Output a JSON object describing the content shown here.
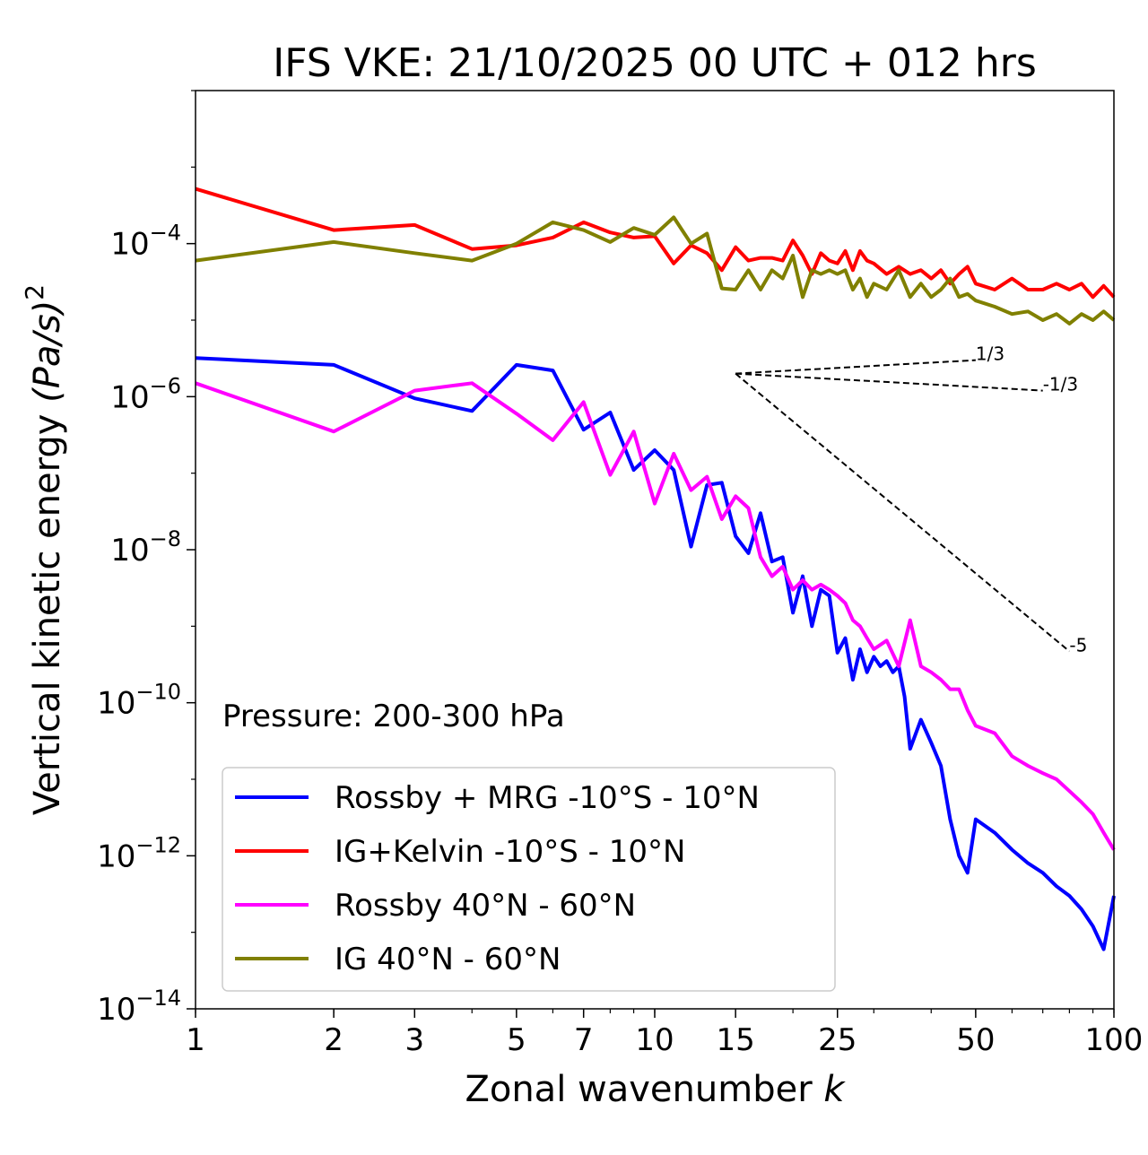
{
  "chart_data": {
    "type": "line",
    "title": "IFS VKE: 21/10/2025 00 UTC + 012 hrs",
    "xlabel_prefix": "Zonal wavenumber ",
    "xlabel_var": "k",
    "ylabel_prefix": "Vertical kinetic energy ",
    "ylabel_unit": "(Pa/s)",
    "ylabel_exp": "2",
    "xscale": "log",
    "yscale": "log",
    "xlim": [
      1,
      100
    ],
    "ylim": [
      1e-14,
      0.01
    ],
    "xticks": [
      1,
      2,
      3,
      5,
      7,
      10,
      15,
      25,
      50,
      100
    ],
    "xtick_labels": [
      "1",
      "2",
      "3",
      "5",
      "7",
      "10",
      "15",
      "25",
      "50",
      "100"
    ],
    "yticks": [
      {
        "value": 0.0001,
        "base": "10",
        "exp": "−4"
      },
      {
        "value": 1e-06,
        "base": "10",
        "exp": "−6"
      },
      {
        "value": 1e-08,
        "base": "10",
        "exp": "−8"
      },
      {
        "value": 1e-10,
        "base": "10",
        "exp": "−10"
      },
      {
        "value": 1e-12,
        "base": "10",
        "exp": "−12"
      },
      {
        "value": 1e-14,
        "base": "10",
        "exp": "−14"
      }
    ],
    "annotation": "Pressure: 200-300 hPa",
    "legend_location": "lower-left",
    "series": [
      {
        "name": "Rossby + MRG -10°S - 10°N",
        "color": "#0000ff",
        "x": [
          1,
          2,
          3,
          4,
          5,
          6,
          7,
          8,
          9,
          10,
          11,
          12,
          13,
          14,
          15,
          16,
          17,
          18,
          19,
          20,
          21,
          22,
          23,
          24,
          25,
          26,
          27,
          28,
          29,
          30,
          31,
          32,
          33,
          34,
          35,
          36,
          38,
          40,
          42,
          44,
          46,
          48,
          50,
          55,
          60,
          65,
          70,
          75,
          80,
          85,
          90,
          95,
          100
        ],
        "values": [
          3.2e-06,
          2.6e-06,
          9.5e-07,
          6.5e-07,
          2.6e-06,
          2.2e-06,
          3.7e-07,
          6.2e-07,
          1.1e-07,
          2e-07,
          1.1e-07,
          1.1e-08,
          7e-08,
          7.5e-08,
          1.5e-08,
          9e-09,
          3e-08,
          7e-09,
          8e-09,
          1.5e-09,
          4.5e-09,
          1e-09,
          3e-09,
          2.5e-09,
          4.5e-10,
          7e-10,
          2e-10,
          5e-10,
          2.5e-10,
          4e-10,
          3e-10,
          3.5e-10,
          2.5e-10,
          3e-10,
          1.2e-10,
          2.5e-11,
          6e-11,
          3e-11,
          1.5e-11,
          3e-12,
          1e-12,
          6e-13,
          3e-12,
          2e-12,
          1.2e-12,
          8e-13,
          6e-13,
          4e-13,
          3e-13,
          2e-13,
          1.2e-13,
          6e-14,
          3e-13
        ]
      },
      {
        "name": "IG+Kelvin -10°S - 10°N",
        "color": "#ff0000",
        "x": [
          1,
          2,
          3,
          4,
          5,
          6,
          7,
          8,
          9,
          10,
          11,
          12,
          13,
          14,
          15,
          16,
          17,
          18,
          19,
          20,
          21,
          22,
          23,
          24,
          25,
          26,
          27,
          28,
          29,
          30,
          32,
          34,
          36,
          38,
          40,
          42,
          44,
          46,
          48,
          50,
          55,
          60,
          65,
          70,
          75,
          80,
          85,
          90,
          95,
          100
        ],
        "values": [
          0.00052,
          0.00015,
          0.000175,
          8.5e-05,
          9.5e-05,
          0.00012,
          0.00019,
          0.00014,
          0.00012,
          0.000125,
          5.5e-05,
          9.5e-05,
          7.5e-05,
          4.5e-05,
          9e-05,
          6e-05,
          6.5e-05,
          6.5e-05,
          6e-05,
          0.00011,
          7e-05,
          4e-05,
          7.5e-05,
          6e-05,
          5.5e-05,
          8e-05,
          4.5e-05,
          8e-05,
          6e-05,
          5.5e-05,
          4e-05,
          5e-05,
          4e-05,
          4.5e-05,
          3.5e-05,
          4.5e-05,
          3e-05,
          4e-05,
          5e-05,
          3e-05,
          2.5e-05,
          3.5e-05,
          2.5e-05,
          2.5e-05,
          3e-05,
          2.5e-05,
          3e-05,
          2e-05,
          2.8e-05,
          2e-05
        ]
      },
      {
        "name": "Rossby 40°N - 60°N",
        "color": "#ff00ff",
        "x": [
          1,
          2,
          3,
          4,
          5,
          6,
          7,
          8,
          9,
          10,
          11,
          12,
          13,
          14,
          15,
          16,
          17,
          18,
          19,
          20,
          21,
          22,
          23,
          24,
          25,
          26,
          27,
          28,
          29,
          30,
          32,
          34,
          36,
          38,
          40,
          42,
          44,
          46,
          48,
          50,
          55,
          60,
          65,
          70,
          75,
          80,
          85,
          90,
          95,
          100
        ],
        "values": [
          1.5e-06,
          3.5e-07,
          1.2e-06,
          1.5e-06,
          6e-07,
          2.7e-07,
          8.5e-07,
          9.5e-08,
          3.5e-07,
          4e-08,
          1.8e-07,
          6e-08,
          9e-08,
          2.5e-08,
          5e-08,
          3.5e-08,
          8e-09,
          4.5e-09,
          6e-09,
          3e-09,
          4e-09,
          3e-09,
          3.5e-09,
          3e-09,
          2.5e-09,
          2e-09,
          1.2e-09,
          1e-09,
          7e-10,
          5e-10,
          6.5e-10,
          3e-10,
          1.2e-09,
          3e-10,
          2.5e-10,
          2e-10,
          1.5e-10,
          1.5e-10,
          8e-11,
          5e-11,
          4e-11,
          2e-11,
          1.5e-11,
          1.2e-11,
          1e-11,
          7e-12,
          5e-12,
          3.5e-12,
          2e-12,
          1.2e-12
        ]
      },
      {
        "name": "IG 40°N - 60°N",
        "color": "#808000",
        "x": [
          1,
          2,
          3,
          4,
          5,
          6,
          7,
          8,
          9,
          10,
          11,
          12,
          13,
          14,
          15,
          16,
          17,
          18,
          19,
          20,
          21,
          22,
          23,
          24,
          25,
          26,
          27,
          28,
          29,
          30,
          32,
          34,
          36,
          38,
          40,
          42,
          44,
          46,
          48,
          50,
          55,
          60,
          65,
          70,
          75,
          80,
          85,
          90,
          95,
          100
        ],
        "values": [
          6e-05,
          0.000105,
          7.5e-05,
          6e-05,
          0.0001,
          0.00019,
          0.00015,
          0.000105,
          0.00016,
          0.00013,
          0.00022,
          0.0001,
          0.000135,
          2.6e-05,
          2.5e-05,
          4.5e-05,
          2.5e-05,
          4.5e-05,
          3.5e-05,
          7e-05,
          2e-05,
          4.5e-05,
          4e-05,
          4.5e-05,
          4e-05,
          4.5e-05,
          2.5e-05,
          3.5e-05,
          2e-05,
          3e-05,
          2.5e-05,
          4.5e-05,
          2e-05,
          3e-05,
          2e-05,
          2.5e-05,
          3.5e-05,
          2e-05,
          2.2e-05,
          1.8e-05,
          1.5e-05,
          1.2e-05,
          1.3e-05,
          1e-05,
          1.2e-05,
          9e-06,
          1.2e-05,
          1e-05,
          1.3e-05,
          1e-05
        ]
      }
    ],
    "reference_lines": [
      {
        "label": "1/3",
        "x": [
          15,
          50
        ],
        "y": [
          2e-06,
          3e-06
        ]
      },
      {
        "label": "-1/3",
        "x": [
          15,
          70
        ],
        "y": [
          2e-06,
          1.2e-06
        ]
      },
      {
        "label": "-5",
        "x": [
          15,
          80
        ],
        "y": [
          2e-06,
          4.7e-10
        ]
      }
    ]
  }
}
